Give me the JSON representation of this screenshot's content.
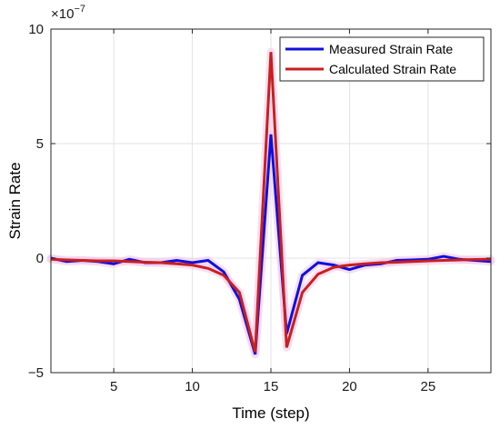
{
  "chart_data": {
    "type": "line",
    "xlabel": "Time (step)",
    "ylabel": "Strain Rate",
    "y_exponent_label": "×10",
    "y_exponent": "−7",
    "xlim": [
      1,
      29
    ],
    "ylim": [
      -5,
      10
    ],
    "x_ticks": [
      5,
      10,
      15,
      20,
      25
    ],
    "y_ticks": [
      -5,
      0,
      5,
      10
    ],
    "grid": true,
    "legend_position": "top-right",
    "series": [
      {
        "name": "Measured Strain Rate",
        "color": "#1010dd",
        "x": [
          1,
          2,
          3,
          4,
          5,
          6,
          7,
          8,
          9,
          10,
          11,
          12,
          13,
          14,
          15,
          16,
          17,
          18,
          19,
          20,
          21,
          22,
          23,
          24,
          25,
          26,
          27,
          28,
          29
        ],
        "y": [
          0,
          -0.15,
          -0.1,
          -0.15,
          -0.25,
          -0.05,
          -0.2,
          -0.2,
          -0.1,
          -0.2,
          -0.1,
          -0.6,
          -1.8,
          -4.2,
          5.4,
          -3.3,
          -0.75,
          -0.2,
          -0.3,
          -0.5,
          -0.3,
          -0.25,
          -0.1,
          -0.08,
          -0.05,
          0.08,
          -0.05,
          -0.1,
          -0.15
        ]
      },
      {
        "name": "Calculated Strain Rate",
        "color": "#c8201e",
        "x": [
          1,
          2,
          3,
          4,
          5,
          6,
          7,
          8,
          9,
          10,
          11,
          12,
          13,
          14,
          15,
          16,
          17,
          18,
          19,
          20,
          21,
          22,
          23,
          24,
          25,
          26,
          27,
          28,
          29
        ],
        "y": [
          -0.05,
          -0.08,
          -0.1,
          -0.12,
          -0.12,
          -0.15,
          -0.18,
          -0.2,
          -0.25,
          -0.3,
          -0.45,
          -0.75,
          -1.5,
          -4.1,
          9.0,
          -3.9,
          -1.5,
          -0.7,
          -0.4,
          -0.3,
          -0.25,
          -0.2,
          -0.18,
          -0.15,
          -0.12,
          -0.1,
          -0.08,
          -0.06,
          -0.05
        ]
      }
    ]
  }
}
